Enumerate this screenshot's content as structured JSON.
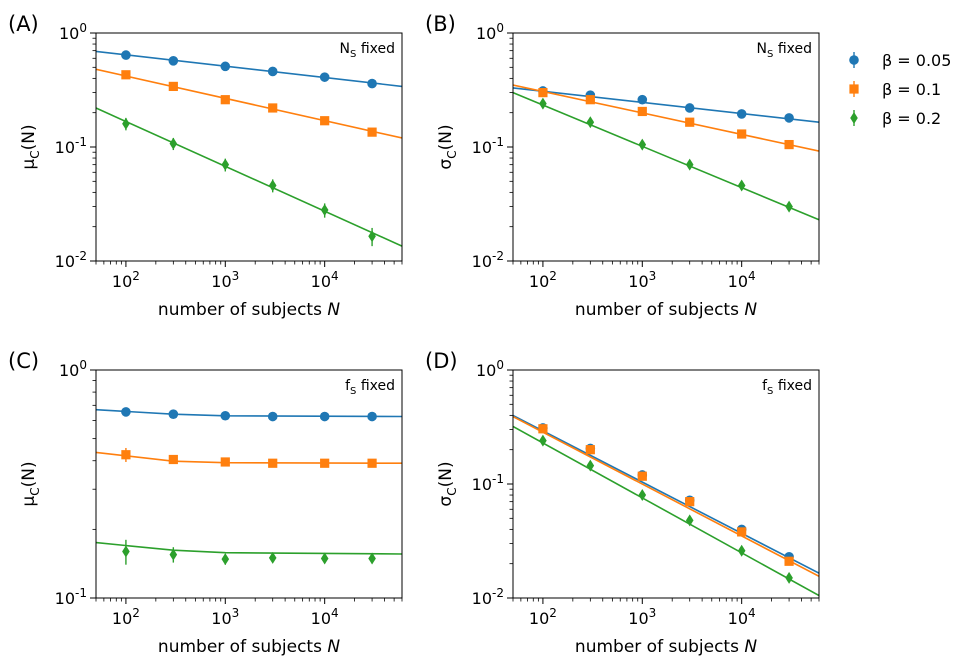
{
  "legend": [
    {
      "name": "β = 0.05",
      "color": "#1f77b4",
      "marker": "circle"
    },
    {
      "name": "β = 0.1",
      "color": "#ff7f0e",
      "marker": "square"
    },
    {
      "name": "β = 0.2",
      "color": "#2ca02c",
      "marker": "diamond"
    }
  ],
  "chart_data": [
    {
      "type": "scatter",
      "panel_label": "(A)",
      "annotation": "N_S fixed",
      "xlabel": "number of subjects N",
      "ylabel": "μ_C(N)",
      "xscale": "log",
      "yscale": "log",
      "xlim": [
        50,
        60000
      ],
      "ylim": [
        0.01,
        1
      ],
      "x_ticks": [
        {
          "value": 100,
          "label": "10^2"
        },
        {
          "value": 1000,
          "label": "10^3"
        },
        {
          "value": 10000,
          "label": "10^4"
        }
      ],
      "y_ticks": [
        {
          "value": 1,
          "label": "10^0"
        },
        {
          "value": 0.1,
          "label": "10^-1"
        },
        {
          "value": 0.01,
          "label": "10^-2"
        }
      ],
      "legend_position": "outside-right",
      "series": [
        {
          "name": "β = 0.05",
          "x": [
            100,
            300,
            1000,
            3000,
            10000,
            30000
          ],
          "y": [
            0.64,
            0.57,
            0.51,
            0.46,
            0.41,
            0.36
          ],
          "yerr": [
            0.02,
            0.02,
            0.02,
            0.015,
            0.015,
            0.015
          ],
          "fit": [
            [
              50,
              0.69
            ],
            [
              60000,
              0.34
            ]
          ]
        },
        {
          "name": "β = 0.1",
          "x": [
            100,
            300,
            1000,
            3000,
            10000,
            30000
          ],
          "y": [
            0.43,
            0.34,
            0.26,
            0.22,
            0.17,
            0.135
          ],
          "yerr": [
            0.025,
            0.02,
            0.012,
            0.01,
            0.008,
            0.007
          ],
          "fit": [
            [
              50,
              0.48
            ],
            [
              60000,
              0.12
            ]
          ]
        },
        {
          "name": "β = 0.2",
          "x": [
            100,
            300,
            1000,
            3000,
            10000,
            30000
          ],
          "y": [
            0.16,
            0.107,
            0.07,
            0.046,
            0.028,
            0.0165
          ],
          "yerr": [
            0.02,
            0.013,
            0.009,
            0.006,
            0.004,
            0.003
          ],
          "fit": [
            [
              50,
              0.22
            ],
            [
              60000,
              0.0135
            ]
          ]
        }
      ]
    },
    {
      "type": "scatter",
      "panel_label": "(B)",
      "annotation": "N_S fixed",
      "xlabel": "number of subjects N",
      "ylabel": "σ_C(N)",
      "xscale": "log",
      "yscale": "log",
      "xlim": [
        50,
        60000
      ],
      "ylim": [
        0.01,
        1
      ],
      "x_ticks": [
        {
          "value": 100,
          "label": "10^2"
        },
        {
          "value": 1000,
          "label": "10^3"
        },
        {
          "value": 10000,
          "label": "10^4"
        }
      ],
      "y_ticks": [
        {
          "value": 1,
          "label": "10^0"
        },
        {
          "value": 0.1,
          "label": "10^-1"
        },
        {
          "value": 0.01,
          "label": "10^-2"
        }
      ],
      "series": [
        {
          "name": "β = 0.05",
          "x": [
            100,
            300,
            1000,
            3000,
            10000,
            30000
          ],
          "y": [
            0.31,
            0.285,
            0.26,
            0.22,
            0.195,
            0.18
          ],
          "yerr": [
            0.02,
            0.018,
            0.018,
            0.015,
            0.012,
            0.01
          ],
          "fit": [
            [
              50,
              0.33
            ],
            [
              60000,
              0.165
            ]
          ]
        },
        {
          "name": "β = 0.1",
          "x": [
            100,
            300,
            1000,
            3000,
            10000,
            30000
          ],
          "y": [
            0.3,
            0.26,
            0.205,
            0.165,
            0.13,
            0.105
          ],
          "yerr": [
            0.015,
            0.012,
            0.01,
            0.008,
            0.006,
            0.005
          ],
          "fit": [
            [
              50,
              0.35
            ],
            [
              60000,
              0.092
            ]
          ]
        },
        {
          "name": "β = 0.2",
          "x": [
            100,
            300,
            1000,
            3000,
            10000,
            30000
          ],
          "y": [
            0.24,
            0.165,
            0.105,
            0.07,
            0.046,
            0.03
          ],
          "yerr": [
            0.015,
            0.01,
            0.006,
            0.004,
            0.003,
            0.002
          ],
          "fit": [
            [
              50,
              0.3
            ],
            [
              60000,
              0.023
            ]
          ]
        }
      ]
    },
    {
      "type": "scatter",
      "panel_label": "(C)",
      "annotation": "f_S fixed",
      "xlabel": "number of subjects N",
      "ylabel": "μ_C(N)",
      "xscale": "log",
      "yscale": "log",
      "xlim": [
        50,
        60000
      ],
      "ylim": [
        0.1,
        1
      ],
      "x_ticks": [
        {
          "value": 100,
          "label": "10^2"
        },
        {
          "value": 1000,
          "label": "10^3"
        },
        {
          "value": 10000,
          "label": "10^4"
        }
      ],
      "y_ticks": [
        {
          "value": 1,
          "label": "10^0"
        },
        {
          "value": 0.1,
          "label": "10^-1"
        }
      ],
      "series": [
        {
          "name": "β = 0.05",
          "x": [
            100,
            300,
            1000,
            3000,
            10000,
            30000
          ],
          "y": [
            0.655,
            0.64,
            0.63,
            0.625,
            0.625,
            0.625
          ],
          "yerr": [
            0.012,
            0.01,
            0.008,
            0.008,
            0.008,
            0.008
          ],
          "fit": [
            [
              50,
              0.67
            ],
            [
              300,
              0.64
            ],
            [
              1000,
              0.63
            ],
            [
              60000,
              0.625
            ]
          ]
        },
        {
          "name": "β = 0.1",
          "x": [
            100,
            300,
            1000,
            3000,
            10000,
            30000
          ],
          "y": [
            0.425,
            0.405,
            0.395,
            0.39,
            0.39,
            0.39
          ],
          "yerr": [
            0.03,
            0.015,
            0.012,
            0.01,
            0.01,
            0.01
          ],
          "fit": [
            [
              50,
              0.435
            ],
            [
              300,
              0.398
            ],
            [
              1000,
              0.392
            ],
            [
              60000,
              0.39
            ]
          ]
        },
        {
          "name": "β = 0.2",
          "x": [
            100,
            300,
            1000,
            3000,
            10000,
            30000
          ],
          "y": [
            0.16,
            0.155,
            0.148,
            0.15,
            0.149,
            0.149
          ],
          "yerr": [
            0.02,
            0.012,
            0.008,
            0.007,
            0.007,
            0.007
          ],
          "fit": [
            [
              50,
              0.175
            ],
            [
              300,
              0.162
            ],
            [
              1000,
              0.158
            ],
            [
              60000,
              0.156
            ]
          ]
        }
      ]
    },
    {
      "type": "scatter",
      "panel_label": "(D)",
      "annotation": "f_S fixed",
      "xlabel": "number of subjects N",
      "ylabel": "σ_C(N)",
      "xscale": "log",
      "yscale": "log",
      "xlim": [
        50,
        60000
      ],
      "ylim": [
        0.01,
        1
      ],
      "x_ticks": [
        {
          "value": 100,
          "label": "10^2"
        },
        {
          "value": 1000,
          "label": "10^3"
        },
        {
          "value": 10000,
          "label": "10^4"
        }
      ],
      "y_ticks": [
        {
          "value": 1,
          "label": "10^0"
        },
        {
          "value": 0.1,
          "label": "10^-1"
        },
        {
          "value": 0.01,
          "label": "10^-2"
        }
      ],
      "series": [
        {
          "name": "β = 0.05",
          "x": [
            100,
            300,
            1000,
            3000,
            10000,
            30000
          ],
          "y": [
            0.31,
            0.205,
            0.12,
            0.072,
            0.04,
            0.023
          ],
          "yerr": [
            0.015,
            0.01,
            0.006,
            0.004,
            0.002,
            0.0015
          ],
          "fit": [
            [
              50,
              0.4
            ],
            [
              60000,
              0.0165
            ]
          ]
        },
        {
          "name": "β = 0.1",
          "x": [
            100,
            300,
            1000,
            3000,
            10000,
            30000
          ],
          "y": [
            0.305,
            0.2,
            0.117,
            0.07,
            0.038,
            0.021
          ],
          "yerr": [
            0.015,
            0.01,
            0.006,
            0.004,
            0.002,
            0.0015
          ],
          "fit": [
            [
              50,
              0.39
            ],
            [
              60000,
              0.0155
            ]
          ]
        },
        {
          "name": "β = 0.2",
          "x": [
            100,
            300,
            1000,
            3000,
            10000,
            30000
          ],
          "y": [
            0.24,
            0.145,
            0.08,
            0.048,
            0.026,
            0.015
          ],
          "yerr": [
            0.012,
            0.008,
            0.005,
            0.003,
            0.002,
            0.0012
          ],
          "fit": [
            [
              50,
              0.32
            ],
            [
              60000,
              0.0105
            ]
          ]
        }
      ]
    }
  ]
}
